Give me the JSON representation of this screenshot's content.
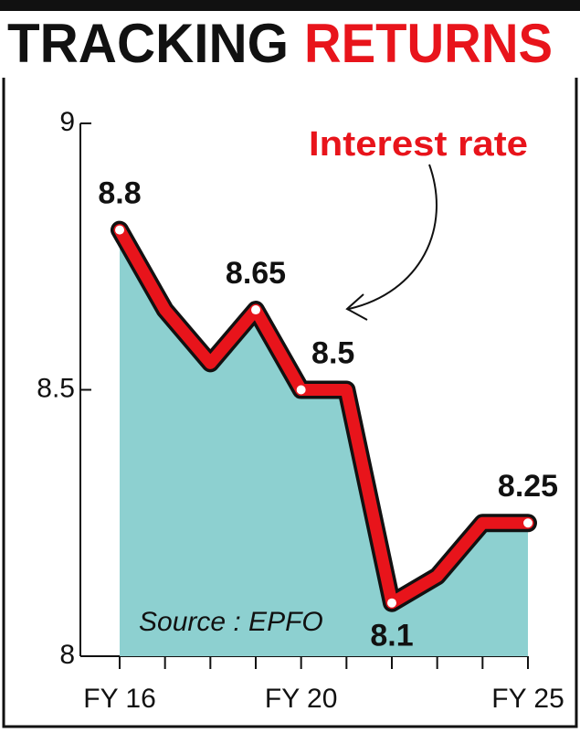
{
  "chart_data": {
    "type": "line",
    "title": [
      "TRACKING",
      "RETURNS"
    ],
    "annotation": "Interest rate",
    "source": "Source : EPFO",
    "categories": [
      "FY 16",
      null,
      null,
      null,
      "FY 20",
      null,
      null,
      null,
      null,
      "FY 25"
    ],
    "series": [
      {
        "name": "Interest rate",
        "color": "#e8141b",
        "values": [
          8.8,
          8.65,
          8.55,
          8.65,
          8.5,
          8.5,
          8.1,
          8.15,
          8.25,
          8.25
        ],
        "value_labels": [
          "8.8",
          null,
          null,
          "8.65",
          "8.5",
          null,
          "8.1",
          null,
          null,
          "8.25"
        ]
      }
    ],
    "area_color": "#8dd0d0",
    "ylim": [
      8,
      9
    ],
    "yticks": [
      8,
      8.5,
      9
    ]
  }
}
